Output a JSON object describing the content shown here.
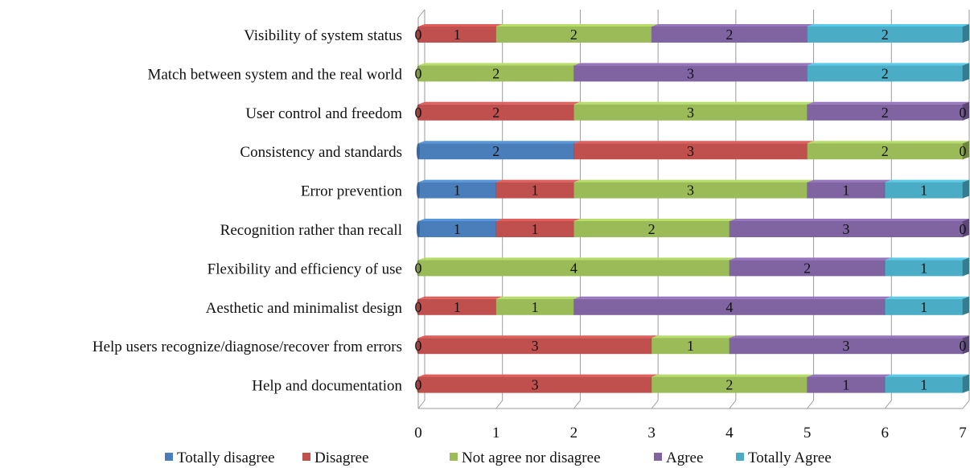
{
  "chart_data": {
    "type": "bar",
    "orientation": "horizontal",
    "stacked": true,
    "style": "3d",
    "categories": [
      "Visibility of system status",
      "Match between system and the real world",
      "User control and freedom",
      "Consistency and standards",
      "Error prevention",
      "Recognition rather than recall",
      "Flexibility and efficiency of use",
      "Aesthetic and minimalist design",
      "Help users recognize/diagnose/recover from errors",
      "Help and documentation"
    ],
    "series": [
      {
        "name": "Totally disagree",
        "color": "#4a7ebb",
        "values": [
          0,
          0,
          0,
          2,
          1,
          1,
          0,
          0,
          0,
          0
        ]
      },
      {
        "name": "Disagree",
        "color": "#c0504d",
        "values": [
          1,
          0,
          2,
          3,
          1,
          1,
          0,
          1,
          3,
          3
        ]
      },
      {
        "name": "Not agree nor disagree",
        "color": "#9bbb59",
        "values": [
          2,
          2,
          3,
          2,
          3,
          2,
          4,
          1,
          1,
          2
        ]
      },
      {
        "name": "Agree",
        "color": "#8064a2",
        "values": [
          2,
          3,
          2,
          0,
          1,
          3,
          2,
          4,
          3,
          1
        ]
      },
      {
        "name": "Totally Agree",
        "color": "#4bacc6",
        "values": [
          2,
          2,
          0,
          0,
          1,
          0,
          1,
          1,
          0,
          1
        ]
      }
    ],
    "data_labels": [
      [
        {
          "v": "0",
          "x": 0
        },
        {
          "v": "1",
          "x": 0.5
        },
        {
          "v": "2",
          "x": 2
        },
        {
          "v": "2",
          "x": 4
        },
        {
          "v": "2",
          "x": 6
        }
      ],
      [
        {
          "v": "0",
          "x": 0
        },
        {
          "v": "2",
          "x": 1
        },
        {
          "v": "3",
          "x": 3.5
        },
        {
          "v": "2",
          "x": 6
        }
      ],
      [
        {
          "v": "0",
          "x": 0
        },
        {
          "v": "2",
          "x": 1
        },
        {
          "v": "3",
          "x": 3.5
        },
        {
          "v": "2",
          "x": 6
        },
        {
          "v": "0",
          "x": 7
        }
      ],
      [
        {
          "v": "2",
          "x": 1
        },
        {
          "v": "3",
          "x": 3.5
        },
        {
          "v": "2",
          "x": 6
        },
        {
          "v": "0",
          "x": 7
        }
      ],
      [
        {
          "v": "1",
          "x": 0.5
        },
        {
          "v": "1",
          "x": 1.5
        },
        {
          "v": "3",
          "x": 3.5
        },
        {
          "v": "1",
          "x": 5.5
        },
        {
          "v": "1",
          "x": 6.5
        }
      ],
      [
        {
          "v": "1",
          "x": 0.5
        },
        {
          "v": "1",
          "x": 1.5
        },
        {
          "v": "2",
          "x": 3
        },
        {
          "v": "3",
          "x": 5.5
        },
        {
          "v": "0",
          "x": 7
        }
      ],
      [
        {
          "v": "0",
          "x": 0
        },
        {
          "v": "4",
          "x": 2
        },
        {
          "v": "2",
          "x": 5
        },
        {
          "v": "1",
          "x": 6.5
        }
      ],
      [
        {
          "v": "0",
          "x": 0
        },
        {
          "v": "1",
          "x": 0.5
        },
        {
          "v": "1",
          "x": 1.5
        },
        {
          "v": "4",
          "x": 4
        },
        {
          "v": "1",
          "x": 6.5
        }
      ],
      [
        {
          "v": "0",
          "x": 0
        },
        {
          "v": "3",
          "x": 1.5
        },
        {
          "v": "1",
          "x": 3.5
        },
        {
          "v": "3",
          "x": 5.5
        },
        {
          "v": "0",
          "x": 7
        }
      ],
      [
        {
          "v": "0",
          "x": 0
        },
        {
          "v": "3",
          "x": 1.5
        },
        {
          "v": "2",
          "x": 4
        },
        {
          "v": "1",
          "x": 5.5
        },
        {
          "v": "1",
          "x": 6.5
        }
      ]
    ],
    "xticks": [
      "0",
      "1",
      "2",
      "3",
      "4",
      "5",
      "6",
      "7"
    ],
    "xlim": [
      0,
      7
    ],
    "grid": true,
    "legend": "bottom",
    "title": "",
    "xlabel": "",
    "ylabel": ""
  }
}
